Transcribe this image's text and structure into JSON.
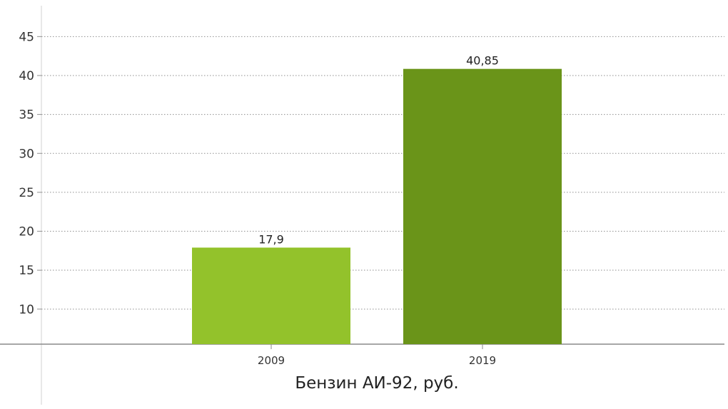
{
  "chart_data": {
    "type": "bar",
    "title": "Бензин АИ-92, руб.",
    "xlabel": "",
    "ylabel": "",
    "categories": [
      "2009",
      "2019"
    ],
    "values": [
      17.9,
      40.85
    ],
    "data_labels": [
      "17,9",
      "40,85"
    ],
    "yticks": [
      "10",
      "15",
      "20",
      "25",
      "30",
      "35",
      "40",
      "45"
    ],
    "ylim": [
      5.5,
      47.5
    ],
    "grid": true,
    "legend": "none",
    "colors": [
      "#93c22b",
      "#6a9419"
    ]
  }
}
